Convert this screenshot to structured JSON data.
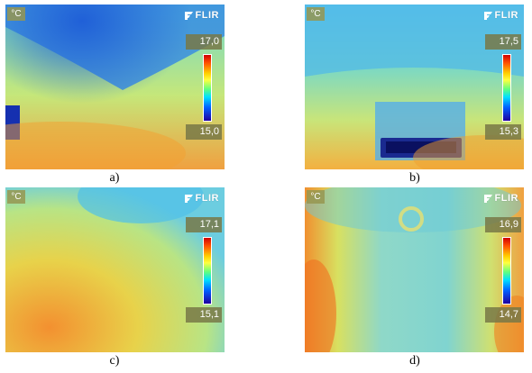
{
  "panels": [
    {
      "id": "a",
      "unit": "°C",
      "brand": "FLIR",
      "max": "17,0",
      "min": "15,0",
      "caption": "a)"
    },
    {
      "id": "b",
      "unit": "°C",
      "brand": "FLIR",
      "max": "17,5",
      "min": "15,3",
      "caption": "b)"
    },
    {
      "id": "c",
      "unit": "°C",
      "brand": "FLIR",
      "max": "17,1",
      "min": "15,1",
      "caption": "c)"
    },
    {
      "id": "d",
      "unit": "°C",
      "brand": "FLIR",
      "max": "16,9",
      "min": "14,7",
      "caption": "d)"
    }
  ],
  "colors": {
    "hot": "#d00000",
    "warm": "#ffd000",
    "cool": "#00e0ff",
    "cold": "#2000a0"
  }
}
